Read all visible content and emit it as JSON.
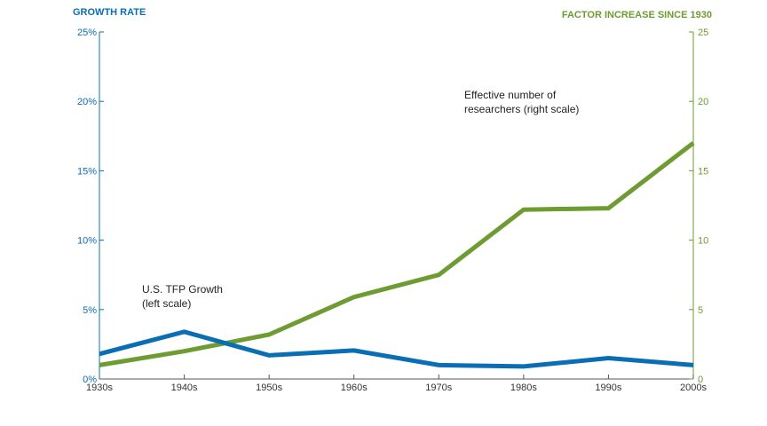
{
  "chart_data": {
    "type": "line",
    "categories": [
      "1930s",
      "1940s",
      "1950s",
      "1960s",
      "1970s",
      "1980s",
      "1990s",
      "2000s"
    ],
    "left_axis": {
      "label": "GROWTH RATE",
      "ylim": [
        0,
        25
      ],
      "ticks": [
        "0%",
        "5%",
        "10%",
        "15%",
        "20%",
        "25%"
      ],
      "color": "#0a6eb4"
    },
    "right_axis": {
      "label": "FACTOR INCREASE SINCE 1930",
      "ylim": [
        0,
        25
      ],
      "ticks": [
        "0",
        "5",
        "10",
        "15",
        "20",
        "25"
      ],
      "color": "#6e9b32"
    },
    "series": [
      {
        "axis": "left",
        "color": "#0a6eb4",
        "values": [
          1.8,
          3.4,
          1.7,
          2.05,
          1.0,
          0.9,
          1.5,
          1.0
        ]
      },
      {
        "axis": "right",
        "color": "#6e9b32",
        "values": [
          1.0,
          2.0,
          3.2,
          5.9,
          7.5,
          12.2,
          12.3,
          17.0
        ]
      }
    ],
    "annotations": [
      {
        "lines": [
          "U.S. TFP Growth",
          "(left scale)"
        ]
      },
      {
        "lines": [
          "Effective number of",
          "researchers (right scale)"
        ]
      }
    ],
    "grid": false
  }
}
